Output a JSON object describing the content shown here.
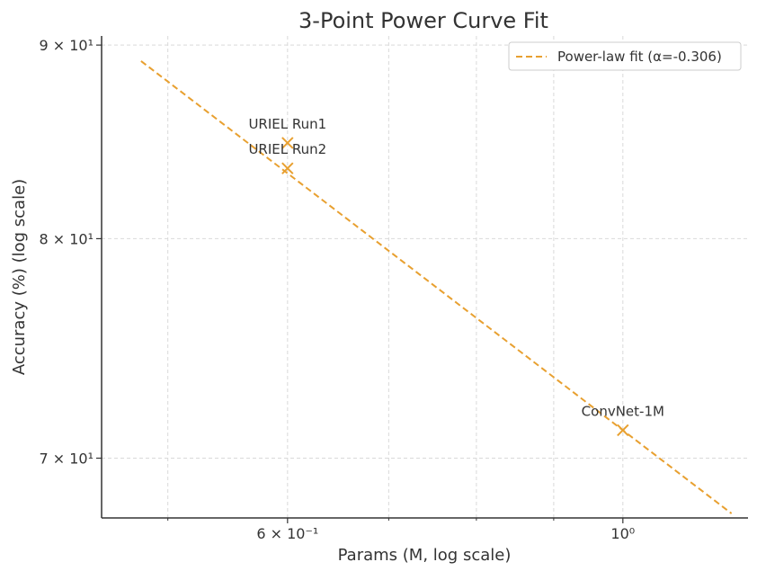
{
  "chart_data": {
    "type": "scatter",
    "title": "3-Point Power Curve Fit",
    "xlabel": "Params (M, log scale)",
    "ylabel": "Accuracy (%) (log scale)",
    "xscale": "log",
    "yscale": "log",
    "xlim": [
      0.452,
      1.21
    ],
    "ylim": [
      67.5,
      90.5
    ],
    "xticks": [
      {
        "value": 0.6,
        "label": "6 × 10⁻¹"
      },
      {
        "value": 1.0,
        "label": "10⁰"
      }
    ],
    "yticks": [
      {
        "value": 70,
        "label": "7 × 10¹"
      },
      {
        "value": 80,
        "label": "8 × 10¹"
      },
      {
        "value": 90,
        "label": "9 × 10¹"
      }
    ],
    "x_minor_ticks": [
      0.5,
      0.7,
      0.8,
      0.9
    ],
    "grid": true,
    "legend_position": "top-right",
    "points": [
      {
        "label": "URIEL Run1",
        "x": 0.6,
        "y": 84.8
      },
      {
        "label": "URIEL Run2",
        "x": 0.6,
        "y": 83.5
      },
      {
        "label": "ConvNet-1M",
        "x": 1.0,
        "y": 71.2
      }
    ],
    "fit": {
      "name": "Power-law fit (α=-0.306)",
      "alpha": -0.306,
      "coefficient": 71.2,
      "x_range": [
        0.48,
        1.18
      ]
    },
    "colors": {
      "accent": "#e8a030",
      "axis": "#333333",
      "grid": "#d9d9d9"
    }
  }
}
